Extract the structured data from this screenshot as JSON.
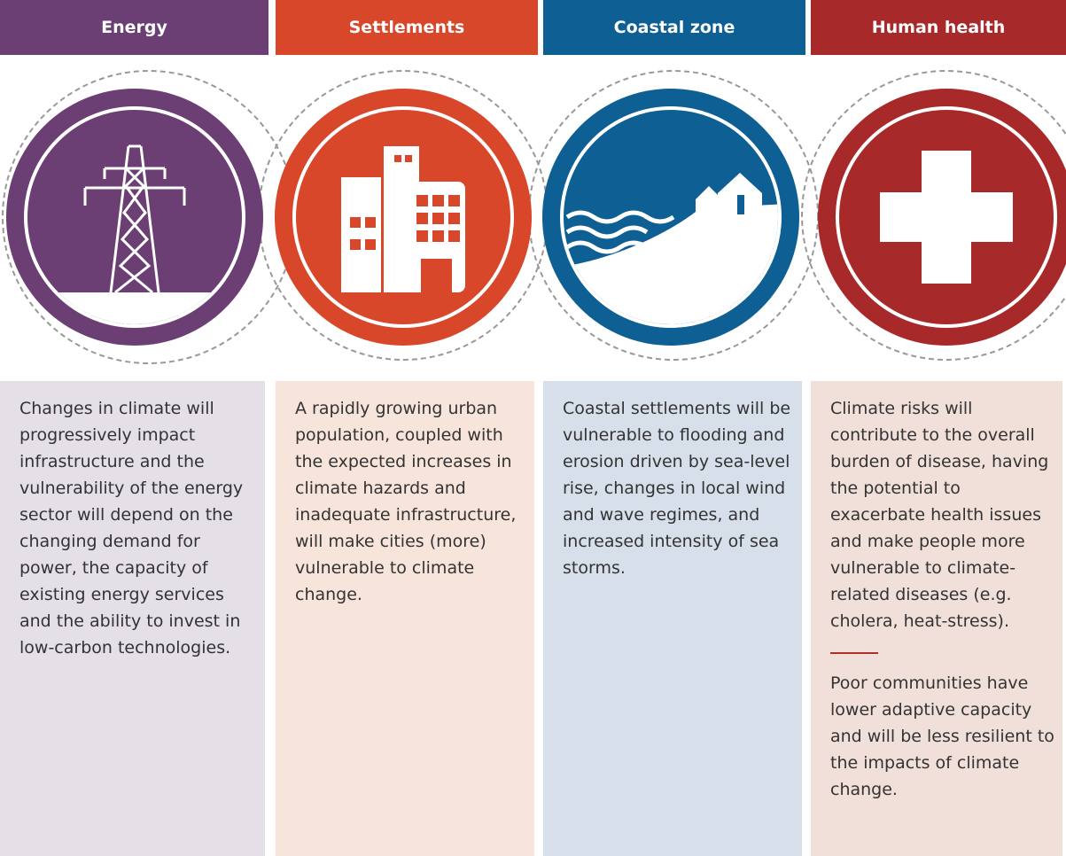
{
  "columns": [
    {
      "title": "Energy",
      "paragraphs": [
        "Changes in climate will progressively impact infrastructure and the vulnerability of the energy sector will depend on the changing demand for power, the capacity of existing energy services and the ability to invest in low-carbon technologies."
      ]
    },
    {
      "title": "Settlements",
      "paragraphs": [
        "A rapidly growing urban population, coupled with the expected increases in climate hazards and inadequate infrastructure, will make cities (more) vulnerable to climate change."
      ]
    },
    {
      "title": "Coastal zone",
      "paragraphs": [
        "Coastal settlements will be vulnerable to flooding and erosion driven by sea-level rise, changes in local wind and wave regimes, and increased intensity of sea storms."
      ]
    },
    {
      "title": "Human health",
      "paragraphs": [
        "Climate risks will contribute to the overall burden of disease, having the potential to exacerbate health issues and make people more vulnerable to climate-related diseases (e.g. cholera, heat-stress).",
        "Poor communities have lower adaptive capacity and will be less resilient to the impacts of climate change."
      ]
    }
  ]
}
